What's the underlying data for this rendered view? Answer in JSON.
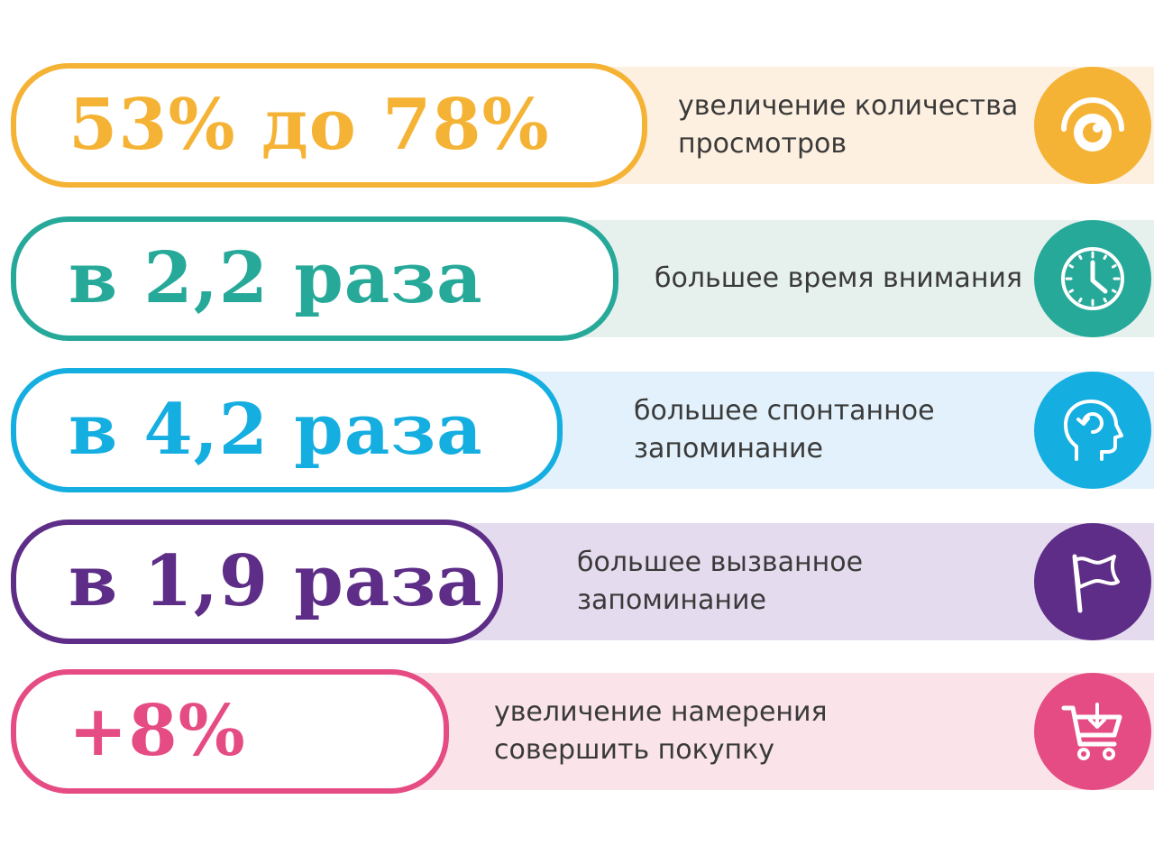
{
  "rows": [
    {
      "value": "53% до 78%",
      "desc_line1": "увеличение количества",
      "desc_line2": "просмотров",
      "icon": "eye-icon",
      "color": "#f5b335",
      "band_color": "#fdf0e0"
    },
    {
      "value": "в 2,2 раза",
      "desc_line1": "большее время внимания",
      "desc_line2": "",
      "icon": "clock-icon",
      "color": "#27a99a",
      "band_color": "#e6f1ee"
    },
    {
      "value": "в 4,2 раза",
      "desc_line1": "большее спонтанное",
      "desc_line2": "запоминание",
      "icon": "head-refresh-icon",
      "color": "#15aee0",
      "band_color": "#e2f1fb"
    },
    {
      "value": "в 1,9 раза",
      "desc_line1": "большее вызванное",
      "desc_line2": "запоминание",
      "icon": "flag-icon",
      "color": "#5e2d87",
      "band_color": "#e5dbee"
    },
    {
      "value": "+8%",
      "desc_line1": "увеличение намерения",
      "desc_line2": "совершить покупку",
      "icon": "shopping-cart-icon",
      "color": "#e54c83",
      "band_color": "#fae4ea"
    }
  ]
}
